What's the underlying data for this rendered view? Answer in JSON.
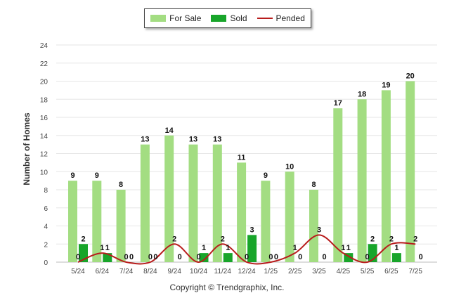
{
  "chart_data": {
    "type": "bar",
    "title": "",
    "xlabel": "",
    "ylabel": "Number of Homes",
    "ylim": [
      0,
      24
    ],
    "yticks": [
      0,
      2,
      4,
      6,
      8,
      10,
      12,
      14,
      16,
      18,
      20,
      22,
      24
    ],
    "grid": true,
    "legend_position": "top-center",
    "categories": [
      "5/24",
      "6/24",
      "7/24",
      "8/24",
      "9/24",
      "10/24",
      "11/24",
      "12/24",
      "1/25",
      "2/25",
      "3/25",
      "4/25",
      "5/25",
      "6/25",
      "7/25"
    ],
    "series": [
      {
        "name": "For Sale",
        "kind": "bar",
        "color": "#a3dd82",
        "values": [
          9,
          9,
          8,
          13,
          14,
          13,
          13,
          11,
          9,
          10,
          8,
          17,
          18,
          19,
          20
        ]
      },
      {
        "name": "Sold",
        "kind": "bar",
        "color": "#18a52a",
        "values": [
          2,
          1,
          0,
          0,
          0,
          1,
          1,
          3,
          0,
          0,
          0,
          1,
          2,
          1,
          0
        ]
      },
      {
        "name": "Pended",
        "kind": "line",
        "color": "#b81c1c",
        "values": [
          0,
          1,
          0,
          0,
          2,
          0,
          2,
          0,
          0,
          1,
          3,
          1,
          0,
          2,
          2
        ]
      }
    ],
    "credit": "Copyright © Trendgraphix, Inc."
  }
}
